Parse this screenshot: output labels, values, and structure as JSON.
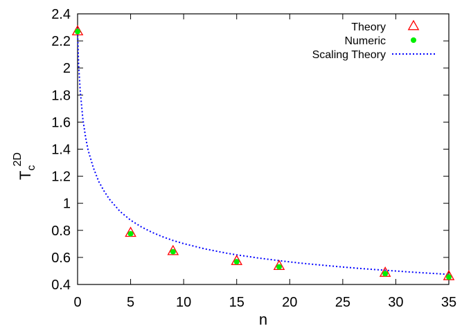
{
  "chart_data": {
    "type": "scatter",
    "xlabel": "n",
    "ylabel": {
      "main": "T",
      "sub": "c",
      "sup": "2D"
    },
    "xlim": [
      0,
      35
    ],
    "ylim": [
      0.4,
      2.4
    ],
    "xticks": [
      0,
      5,
      10,
      15,
      20,
      25,
      30,
      35
    ],
    "yticks": [
      0.4,
      0.6,
      0.8,
      1.0,
      1.2,
      1.4,
      1.6,
      1.8,
      2.0,
      2.2,
      2.4
    ],
    "ytick_labels": [
      "0.4",
      "0.6",
      "0.8",
      "1",
      "1.2",
      "1.4",
      "1.6",
      "1.8",
      "2",
      "2.2",
      "2.4"
    ],
    "grid": false,
    "legend_position": "top-right",
    "series": [
      {
        "name": "Theory",
        "marker": "open-triangle",
        "color": "#ff0000",
        "x": [
          0,
          5,
          9,
          15,
          19,
          29,
          35
        ],
        "y": [
          2.269,
          0.78,
          0.645,
          0.572,
          0.535,
          0.485,
          0.46
        ]
      },
      {
        "name": "Numeric",
        "marker": "filled-circle",
        "color": "#00ee00",
        "x": [
          0,
          5,
          9,
          15,
          19,
          29,
          35
        ],
        "y": [
          2.269,
          0.775,
          0.642,
          0.568,
          0.53,
          0.48,
          0.455
        ]
      },
      {
        "name": "Scaling Theory",
        "marker": "dotted-line",
        "color": "#0000ff",
        "x": [
          0,
          0.1,
          0.25,
          0.5,
          0.75,
          1,
          1.5,
          2,
          2.5,
          3,
          4,
          5,
          6,
          7,
          8,
          9,
          10,
          12,
          14,
          15,
          17,
          19,
          21,
          23,
          25,
          27,
          29,
          31,
          33,
          35
        ],
        "y": [
          2.269,
          2.02,
          1.83,
          1.62,
          1.49,
          1.39,
          1.26,
          1.16,
          1.09,
          1.03,
          0.94,
          0.875,
          0.826,
          0.786,
          0.753,
          0.725,
          0.702,
          0.663,
          0.632,
          0.619,
          0.596,
          0.576,
          0.558,
          0.543,
          0.529,
          0.516,
          0.505,
          0.494,
          0.484,
          0.475
        ]
      }
    ]
  }
}
